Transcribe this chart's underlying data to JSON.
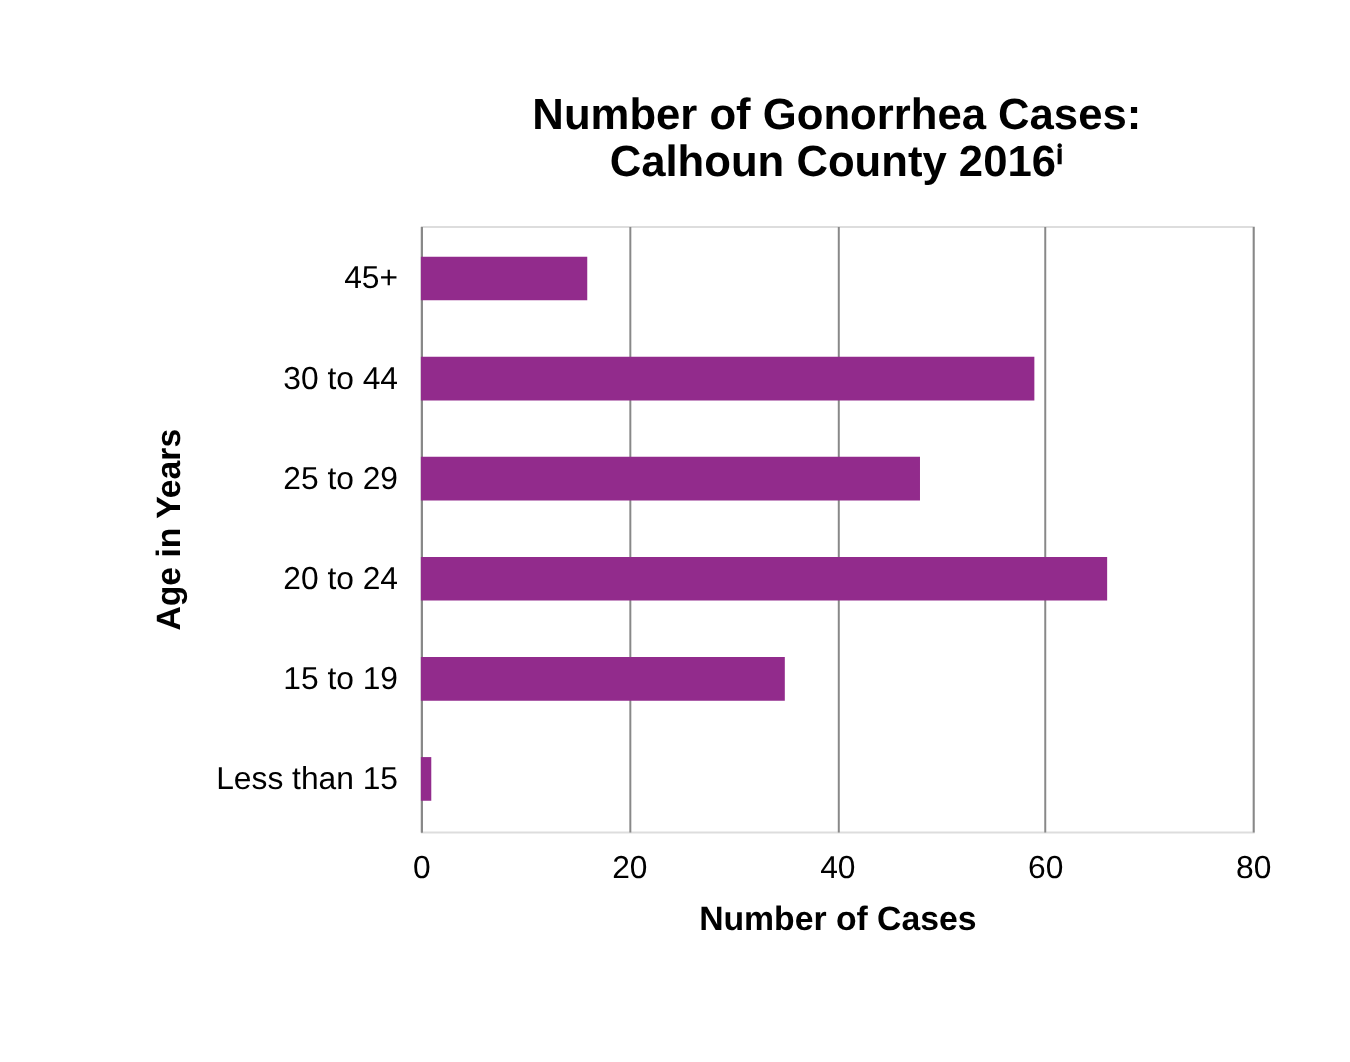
{
  "chart_data": {
    "type": "bar",
    "orientation": "horizontal",
    "title": [
      "Number of Gonorrhea Cases:",
      "Calhoun County 2016ⁱ"
    ],
    "xlabel": "Number of Cases",
    "ylabel": "Age in Years",
    "categories": [
      "45+",
      "30 to 44",
      "25 to 29",
      "20 to 24",
      "15 to 19",
      "Less than 15"
    ],
    "values": [
      16,
      59,
      48,
      66,
      35,
      1
    ],
    "color": "#922b8c",
    "xlim": [
      0,
      80
    ],
    "xticks": [
      0,
      20,
      40,
      60,
      80
    ],
    "grid": "x"
  }
}
